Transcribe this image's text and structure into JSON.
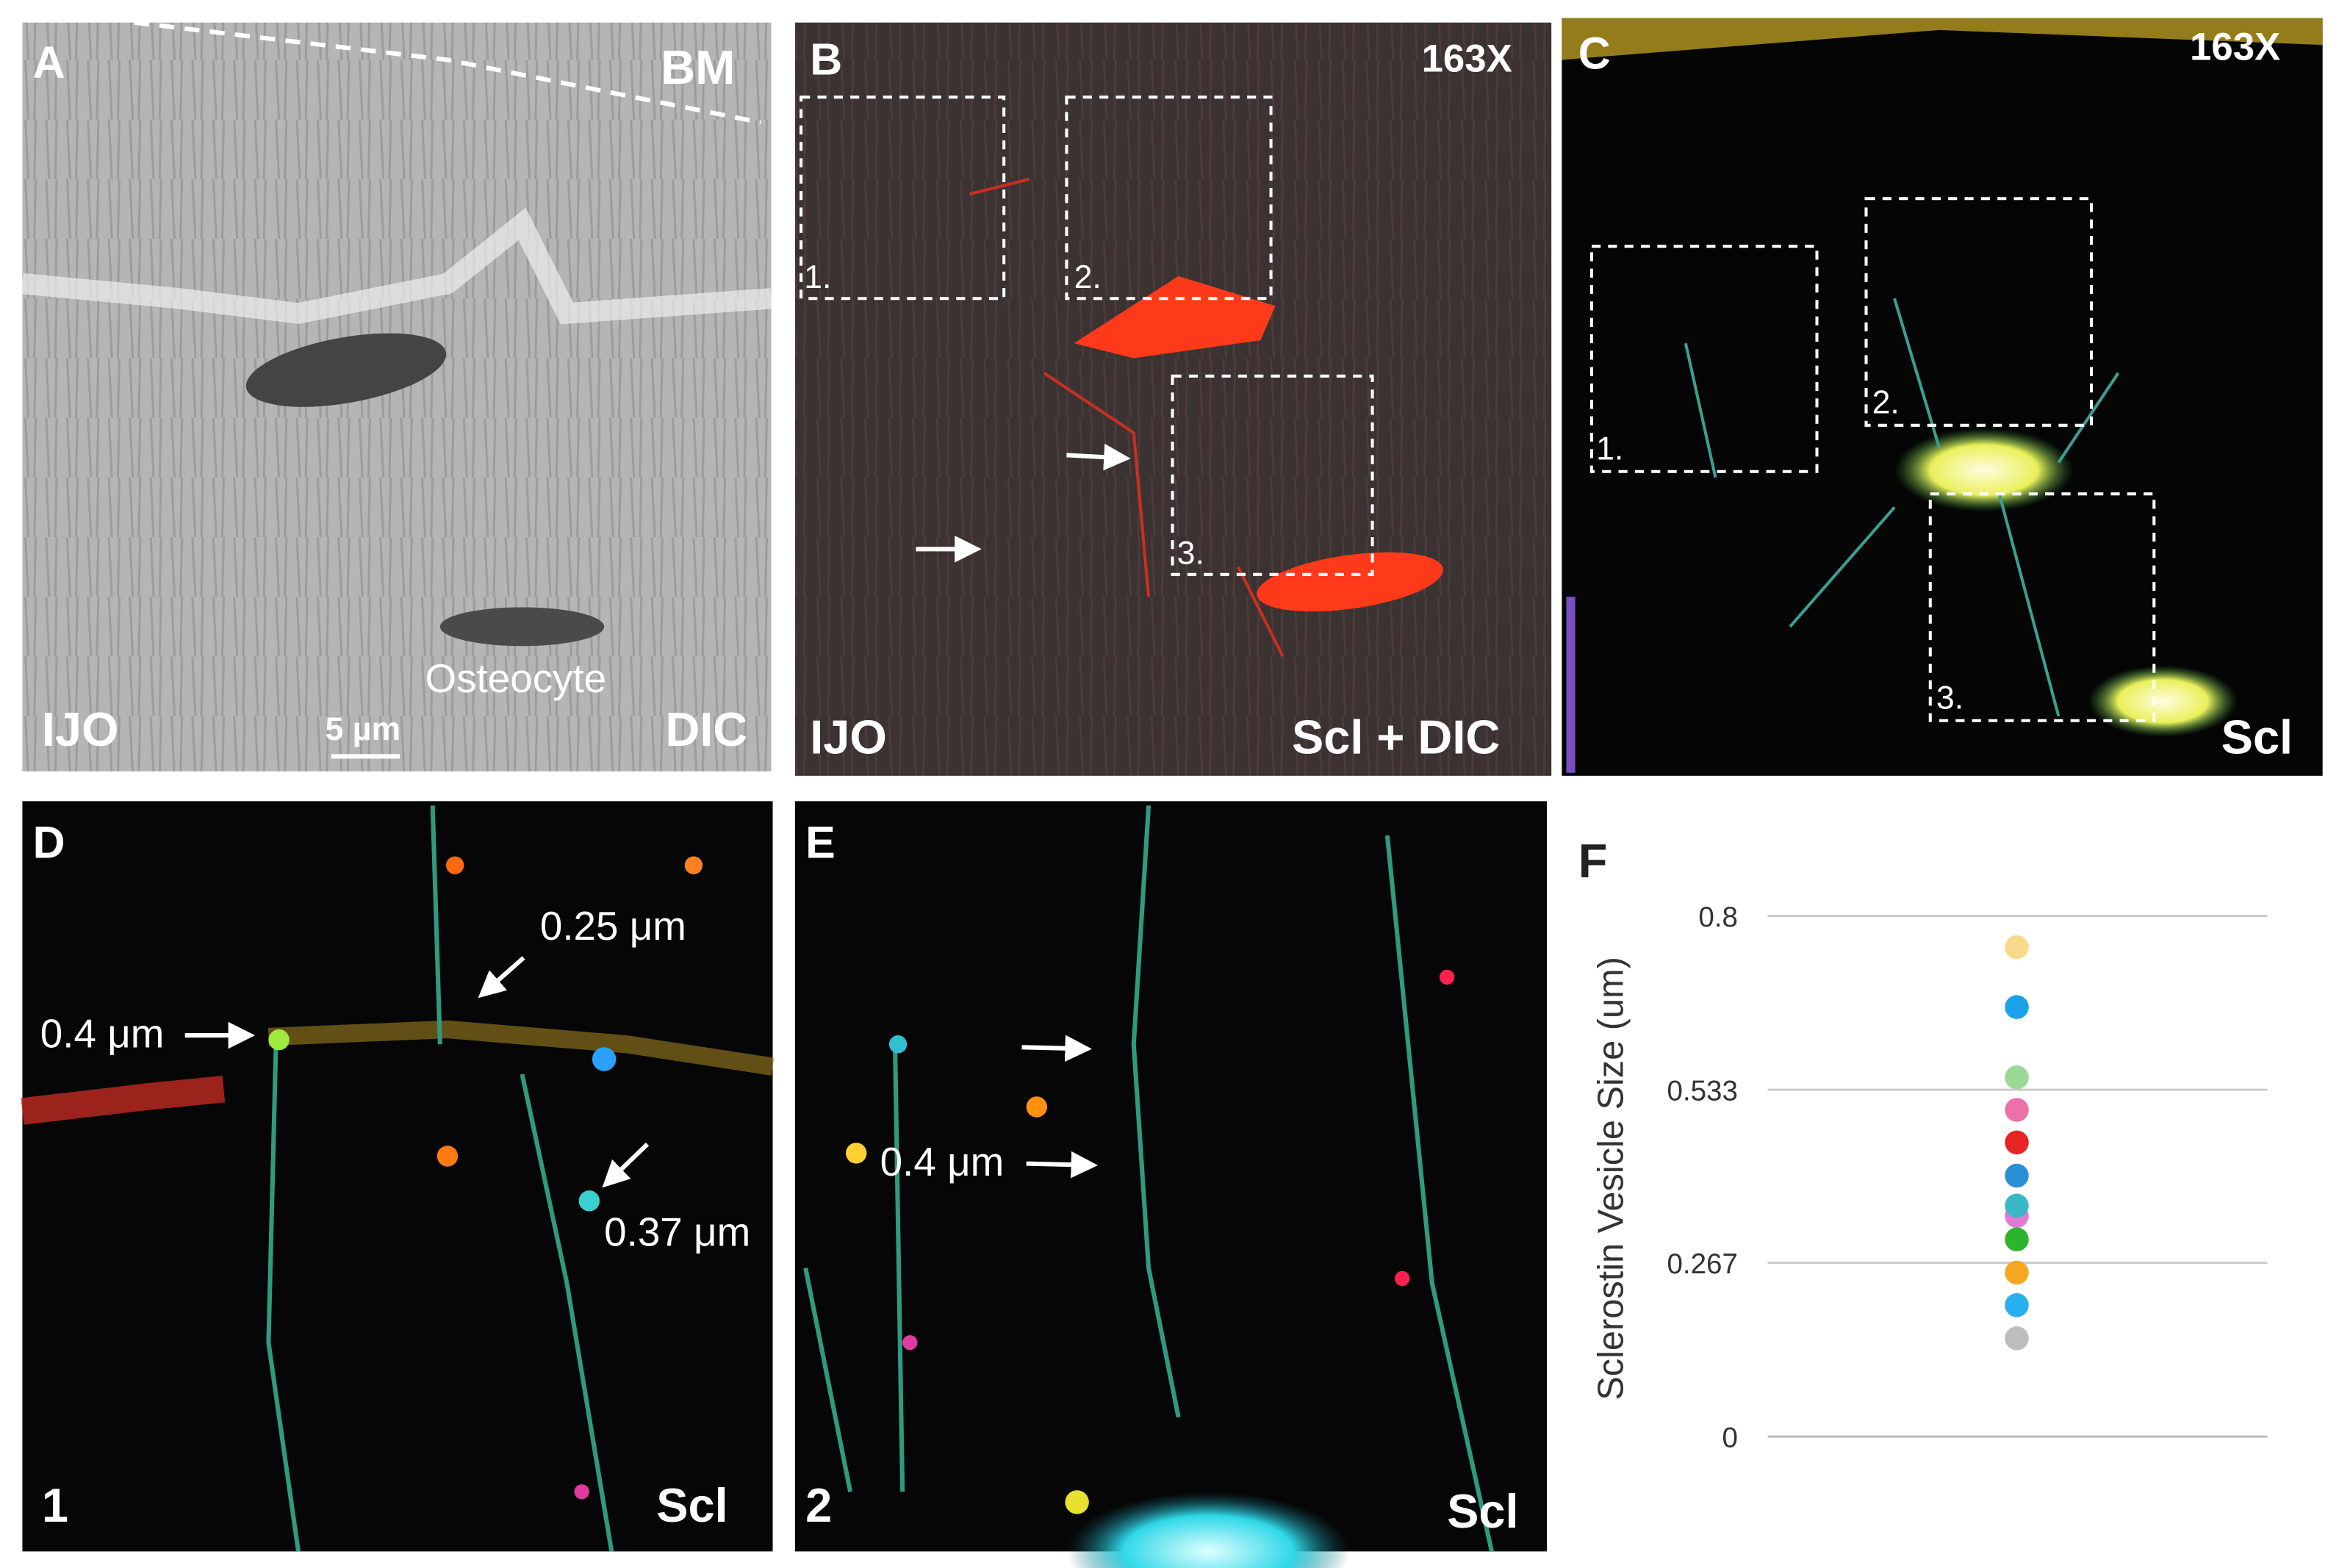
{
  "panels": [
    {
      "label": "A",
      "texts": [
        "BM",
        "Osteocyte",
        "IJO",
        "5 µm",
        "DIC"
      ]
    },
    {
      "label": "B",
      "texts": [
        "163X",
        "1.",
        "2.",
        "3.",
        "IJO",
        "Scl + DIC"
      ]
    },
    {
      "label": "C",
      "texts": [
        "163X",
        "1.",
        "2.",
        "3.",
        "Scl"
      ]
    },
    {
      "label": "D",
      "texts": [
        "0.25 μm",
        "0.4 μm",
        "0.37 μm",
        "1",
        "Scl"
      ]
    },
    {
      "label": "E",
      "texts": [
        "0.4 μm",
        "2",
        "Scl"
      ]
    },
    {
      "label": "F"
    }
  ],
  "chart_data": {
    "type": "strip",
    "y_label": "Sclerostin Vesicle Size (um)",
    "values": [
      0.752,
      0.66,
      0.552,
      0.502,
      0.452,
      0.401,
      0.339,
      0.355,
      0.303,
      0.252,
      0.202,
      0.151
    ],
    "colors": [
      "#f9d98a",
      "#1aa3e8",
      "#9ad896",
      "#ee70a8",
      "#e82323",
      "#2b8fd6",
      "#e07bd4",
      "#3bb8c8",
      "#2cb52c",
      "#f5a623",
      "#29b0ef",
      "#bdbdbd"
    ],
    "ylim": [
      0,
      0.8
    ],
    "yticks": [
      0,
      0.267,
      0.533,
      0.8
    ],
    "grid": true
  }
}
